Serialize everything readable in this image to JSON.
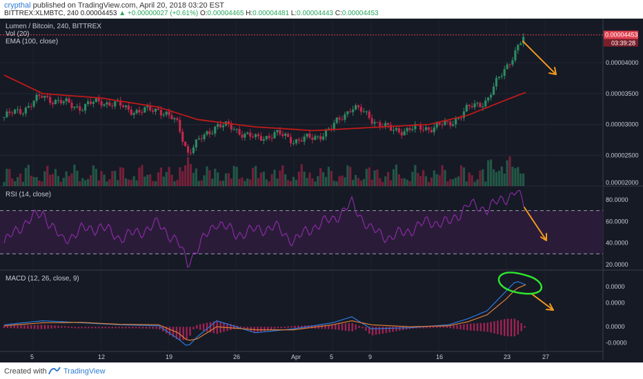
{
  "header": {
    "author": "crypthal",
    "published_text": " published on TradingView.com, April 20, 2018 03:20 EST",
    "symbol": "BITTREX:XLMBTC, 240",
    "last": "0.00004453",
    "change": "▲ +0.00000027 (+0.61%)",
    "o_label": "O:",
    "o": "0.00004465",
    "h_label": "H:",
    "h": "0.00004481",
    "l_label": "L:",
    "l": "0.00004443",
    "c_label": "C:",
    "c": "0.00004453"
  },
  "legend": {
    "title": "Lumen / Bitcoin, 240, BITTREX",
    "vol": "Vol (20)",
    "ema": "EMA (100, close)",
    "rsi": "RSI (14, close)",
    "macd": "MACD (12, 26, close, 9)"
  },
  "price_scale": {
    "ticks": [
      "0.00004000",
      "0.00003500",
      "0.00003000",
      "0.00002500",
      "0.00002000"
    ],
    "last_price": "0.00004453",
    "countdown": "03:39:28"
  },
  "rsi_scale": {
    "ticks": [
      "80.0000",
      "60.0000",
      "40.0000",
      "20.0000"
    ]
  },
  "macd_scale": {
    "ticks": [
      "0.0000",
      "0.0000",
      "0.0000",
      "-0.0000"
    ]
  },
  "x_axis": {
    "ticks": [
      "5",
      "12",
      "19",
      "26",
      "Apr",
      "5",
      "9",
      "16",
      "23",
      "27"
    ]
  },
  "footer": {
    "created": "Created with",
    "brand": "TradingView"
  },
  "colors": {
    "background": "#161a25",
    "up": "#2e8a62",
    "down": "#c2274a",
    "ema": "#c01a1a",
    "rsi": "#8a2aa6",
    "rsi_band": "#2a1c38",
    "macd": "#2a7de1",
    "signal": "#e0803a",
    "annotation_arrow": "#f39a1f",
    "annotation_circle": "#2ee62e",
    "price_tag": "#e0404f"
  },
  "chart_data": {
    "type": "candlestick",
    "x_start": "2018-03-02",
    "x_end": "2018-04-20",
    "x_ticks": [
      "5",
      "12",
      "19",
      "26",
      "Apr",
      "5",
      "9",
      "16",
      "23",
      "27"
    ],
    "price_ylim": [
      2e-05,
      4.65e-05
    ],
    "close_series": [
      [
        0,
        3.12e-05
      ],
      [
        2,
        3.25e-05
      ],
      [
        4,
        3.46e-05
      ],
      [
        6,
        3.35e-05
      ],
      [
        8,
        3.28e-05
      ],
      [
        10,
        3.38e-05
      ],
      [
        12,
        3.3e-05
      ],
      [
        14,
        3.2e-05
      ],
      [
        16,
        3.26e-05
      ],
      [
        18,
        3e-05
      ],
      [
        19,
        2.55e-05
      ],
      [
        20,
        2.7e-05
      ],
      [
        22,
        3e-05
      ],
      [
        24,
        2.92e-05
      ],
      [
        26,
        2.76e-05
      ],
      [
        28,
        2.85e-05
      ],
      [
        30,
        2.75e-05
      ],
      [
        32,
        2.77e-05
      ],
      [
        34,
        2.95e-05
      ],
      [
        36,
        3.3e-05
      ],
      [
        38,
        3.1e-05
      ],
      [
        40,
        2.9e-05
      ],
      [
        42,
        2.92e-05
      ],
      [
        44,
        2.95e-05
      ],
      [
        46,
        3e-05
      ],
      [
        48,
        3.25e-05
      ],
      [
        50,
        3.4e-05
      ],
      [
        52,
        3.95e-05
      ],
      [
        53,
        4.2e-05
      ],
      [
        54,
        4.45e-05
      ]
    ],
    "ema100": [
      [
        0,
        3.8e-05
      ],
      [
        4,
        3.5e-05
      ],
      [
        10,
        3.43e-05
      ],
      [
        16,
        3.28e-05
      ],
      [
        20,
        3.08e-05
      ],
      [
        26,
        2.96e-05
      ],
      [
        32,
        2.9e-05
      ],
      [
        38,
        2.95e-05
      ],
      [
        44,
        3e-05
      ],
      [
        48,
        3.15e-05
      ],
      [
        52,
        3.4e-05
      ],
      [
        54,
        3.52e-05
      ]
    ],
    "rsi": {
      "levels": [
        70,
        30
      ],
      "ylim": [
        15,
        92
      ],
      "series": [
        [
          0,
          40
        ],
        [
          2,
          58
        ],
        [
          4,
          68
        ],
        [
          6,
          42
        ],
        [
          8,
          52
        ],
        [
          10,
          55
        ],
        [
          12,
          45
        ],
        [
          14,
          50
        ],
        [
          16,
          58
        ],
        [
          18,
          40
        ],
        [
          19,
          22
        ],
        [
          20,
          35
        ],
        [
          22,
          60
        ],
        [
          24,
          48
        ],
        [
          26,
          52
        ],
        [
          28,
          55
        ],
        [
          30,
          42
        ],
        [
          32,
          55
        ],
        [
          34,
          62
        ],
        [
          36,
          76
        ],
        [
          38,
          52
        ],
        [
          40,
          45
        ],
        [
          42,
          52
        ],
        [
          44,
          60
        ],
        [
          46,
          58
        ],
        [
          48,
          75
        ],
        [
          50,
          72
        ],
        [
          52,
          82
        ],
        [
          53,
          88
        ],
        [
          54,
          72
        ]
      ]
    },
    "macd": {
      "ylim": [
        -1.2,
        2.8
      ],
      "macd": [
        [
          0,
          0.1
        ],
        [
          4,
          0.3
        ],
        [
          8,
          0.2
        ],
        [
          12,
          0.1
        ],
        [
          16,
          0.05
        ],
        [
          18,
          -0.6
        ],
        [
          19,
          -1.0
        ],
        [
          20,
          -0.5
        ],
        [
          22,
          0.3
        ],
        [
          26,
          -0.3
        ],
        [
          30,
          -0.1
        ],
        [
          34,
          0.2
        ],
        [
          36,
          0.5
        ],
        [
          38,
          -0.1
        ],
        [
          42,
          -0.05
        ],
        [
          46,
          0.1
        ],
        [
          48,
          0.4
        ],
        [
          50,
          0.8
        ],
        [
          52,
          1.8
        ],
        [
          53,
          2.3
        ],
        [
          54,
          2.1
        ]
      ],
      "signal": [
        [
          0,
          0.05
        ],
        [
          4,
          0.2
        ],
        [
          8,
          0.22
        ],
        [
          12,
          0.12
        ],
        [
          16,
          0.1
        ],
        [
          18,
          -0.3
        ],
        [
          19,
          -0.7
        ],
        [
          20,
          -0.6
        ],
        [
          22,
          0.0
        ],
        [
          26,
          -0.15
        ],
        [
          30,
          -0.15
        ],
        [
          34,
          0.1
        ],
        [
          36,
          0.3
        ],
        [
          38,
          0.1
        ],
        [
          42,
          0.0
        ],
        [
          46,
          0.05
        ],
        [
          48,
          0.25
        ],
        [
          50,
          0.6
        ],
        [
          52,
          1.4
        ],
        [
          53,
          1.9
        ],
        [
          54,
          2.1
        ]
      ]
    }
  }
}
